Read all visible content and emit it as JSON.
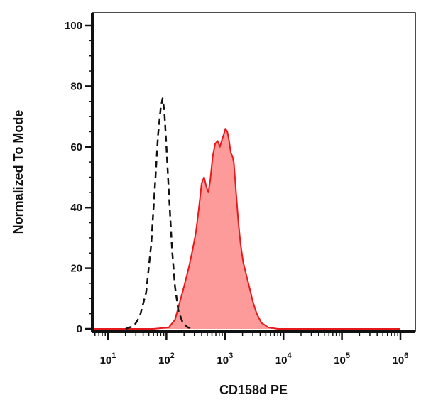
{
  "chart_data": {
    "type": "area",
    "title": "",
    "xlabel": "CD158d PE",
    "ylabel": "Normalized To Mode",
    "x_scale": "log",
    "xlim": [
      5,
      1000000
    ],
    "ylim": [
      0,
      100
    ],
    "y_ticks": [
      0,
      20,
      40,
      60,
      80,
      100
    ],
    "x_ticks": [
      {
        "value": 10,
        "base": "10",
        "exp": "1"
      },
      {
        "value": 100,
        "base": "10",
        "exp": "2"
      },
      {
        "value": 1000,
        "base": "10",
        "exp": "3"
      },
      {
        "value": 10000,
        "base": "10",
        "exp": "4"
      },
      {
        "value": 100000,
        "base": "10",
        "exp": "5"
      },
      {
        "value": 1000000,
        "base": "10",
        "exp": "6"
      }
    ],
    "grid": false,
    "legend": "none",
    "series": [
      {
        "style": "dashed-line",
        "color": "#111111",
        "points": [
          [
            20,
            0
          ],
          [
            28,
            1
          ],
          [
            35,
            4
          ],
          [
            45,
            12
          ],
          [
            55,
            28
          ],
          [
            65,
            50
          ],
          [
            72,
            64
          ],
          [
            80,
            73
          ],
          [
            86,
            76
          ],
          [
            92,
            72
          ],
          [
            100,
            60
          ],
          [
            110,
            45
          ],
          [
            125,
            26
          ],
          [
            140,
            14
          ],
          [
            160,
            6
          ],
          [
            190,
            2
          ],
          [
            230,
            0.5
          ],
          [
            300,
            0
          ]
        ]
      },
      {
        "style": "filled-area",
        "color": "#e8191b",
        "fill": "#fd9a9a",
        "points": [
          [
            5,
            0
          ],
          [
            60,
            0
          ],
          [
            110,
            0.5
          ],
          [
            140,
            3
          ],
          [
            170,
            9
          ],
          [
            200,
            14
          ],
          [
            240,
            20
          ],
          [
            280,
            26
          ],
          [
            320,
            32
          ],
          [
            360,
            40
          ],
          [
            400,
            48
          ],
          [
            440,
            50
          ],
          [
            480,
            47
          ],
          [
            520,
            45
          ],
          [
            560,
            49
          ],
          [
            620,
            57
          ],
          [
            680,
            61
          ],
          [
            750,
            62
          ],
          [
            820,
            60
          ],
          [
            880,
            62
          ],
          [
            950,
            64
          ],
          [
            1020,
            66
          ],
          [
            1100,
            65
          ],
          [
            1180,
            62
          ],
          [
            1260,
            58
          ],
          [
            1340,
            57
          ],
          [
            1420,
            55
          ],
          [
            1550,
            45
          ],
          [
            1700,
            35
          ],
          [
            1850,
            28
          ],
          [
            2050,
            22
          ],
          [
            2300,
            18
          ],
          [
            2600,
            14
          ],
          [
            3000,
            9
          ],
          [
            3500,
            5
          ],
          [
            4200,
            2
          ],
          [
            5500,
            0.5
          ],
          [
            8000,
            0
          ],
          [
            1000000,
            0
          ]
        ]
      }
    ]
  }
}
